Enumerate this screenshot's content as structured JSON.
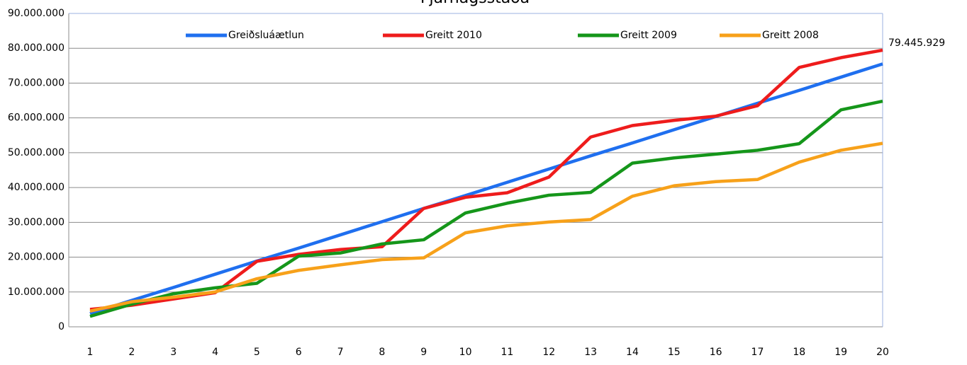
{
  "chart_data": {
    "type": "line",
    "title": "Fjárhagsstaða",
    "categories": [
      "1",
      "2",
      "3",
      "4",
      "5",
      "6",
      "7",
      "8",
      "9",
      "10",
      "11",
      "12",
      "13",
      "14",
      "15",
      "16",
      "17",
      "18",
      "19",
      "20"
    ],
    "series": [
      {
        "name": "Greiðsluáætlun",
        "color": "#1f6fef",
        "values": [
          3800000,
          7600000,
          11300000,
          15100000,
          18900000,
          22600000,
          26400000,
          30200000,
          34000000,
          37700000,
          41500000,
          45300000,
          49100000,
          52800000,
          56600000,
          60400000,
          64200000,
          67900000,
          71700000,
          75500000
        ]
      },
      {
        "name": "Greitt 2010",
        "color": "#ee1c1c",
        "values": [
          5000000,
          6200000,
          8000000,
          9800000,
          18800000,
          20800000,
          22200000,
          23000000,
          34000000,
          37200000,
          38500000,
          43000000,
          54500000,
          57800000,
          59300000,
          60500000,
          63500000,
          74500000,
          77300000,
          79445929
        ],
        "value_labels": [
          null,
          null,
          null,
          null,
          null,
          null,
          null,
          null,
          null,
          null,
          null,
          null,
          null,
          null,
          null,
          null,
          null,
          null,
          null,
          "79.445.929"
        ]
      },
      {
        "name": "Greitt 2009",
        "color": "#15961a",
        "values": [
          3000000,
          6500000,
          9500000,
          11200000,
          12500000,
          20300000,
          21200000,
          23800000,
          25000000,
          32700000,
          35500000,
          37800000,
          38600000,
          47000000,
          48500000,
          49600000,
          50700000,
          52600000,
          62300000,
          64800000
        ]
      },
      {
        "name": "Greitt 2008",
        "color": "#f7a11a",
        "values": [
          4500000,
          7200000,
          8500000,
          10000000,
          13800000,
          16200000,
          17800000,
          19300000,
          19800000,
          27000000,
          29000000,
          30100000,
          30800000,
          37500000,
          40500000,
          41700000,
          42300000,
          47300000,
          50700000,
          52700000
        ]
      }
    ],
    "ylim": [
      0,
      90000000
    ],
    "yticks": [
      0,
      {
        "value": 10000000,
        "label": "10.000.000"
      },
      {
        "value": 20000000,
        "label": "20.000.000"
      },
      {
        "value": 30000000,
        "label": "30.000.000"
      },
      {
        "value": 40000000,
        "label": "40.000.000"
      },
      {
        "value": 50000000,
        "label": "50.000.000"
      },
      {
        "value": 60000000,
        "label": "60.000.000"
      },
      {
        "value": 70000000,
        "label": "70.000.000"
      },
      {
        "value": 80000000,
        "label": "80.000.000"
      },
      {
        "value": 90000000,
        "label": "90.000.000"
      }
    ],
    "grid": true,
    "legend": "top"
  }
}
